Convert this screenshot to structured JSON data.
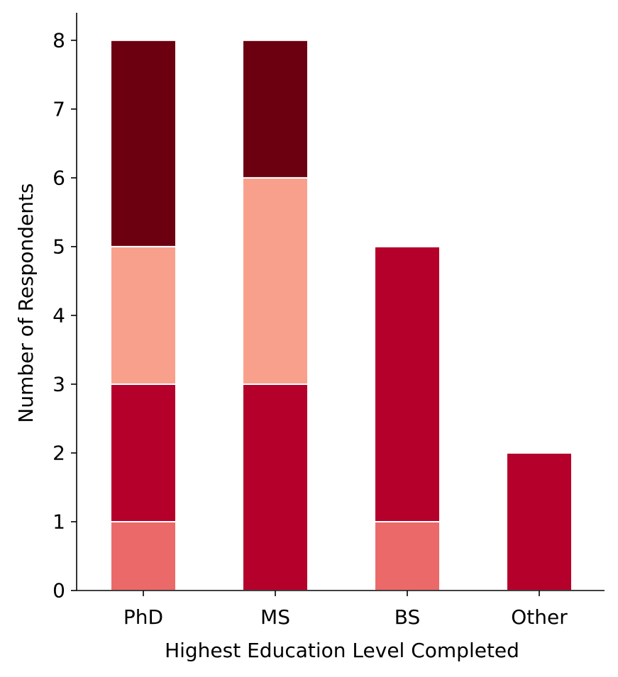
{
  "chart_data": {
    "type": "bar",
    "stacked": true,
    "title": "",
    "xlabel": "Highest Education Level Completed",
    "ylabel": "Number of Respondents",
    "categories": [
      "PhD",
      "MS",
      "BS",
      "Other"
    ],
    "ylim": [
      0,
      8.4
    ],
    "yticks": [
      0,
      1,
      2,
      3,
      4,
      5,
      6,
      7,
      8
    ],
    "grid": false,
    "legend": "none",
    "series": [
      {
        "color": "#ec6969",
        "values": [
          1,
          0,
          1,
          0
        ]
      },
      {
        "color": "#b5002b",
        "values": [
          2,
          3,
          4,
          2
        ]
      },
      {
        "color": "#f9a08c",
        "values": [
          2,
          3,
          0,
          0
        ]
      },
      {
        "color": "#6c0011",
        "values": [
          3,
          2,
          0,
          0
        ]
      }
    ]
  }
}
